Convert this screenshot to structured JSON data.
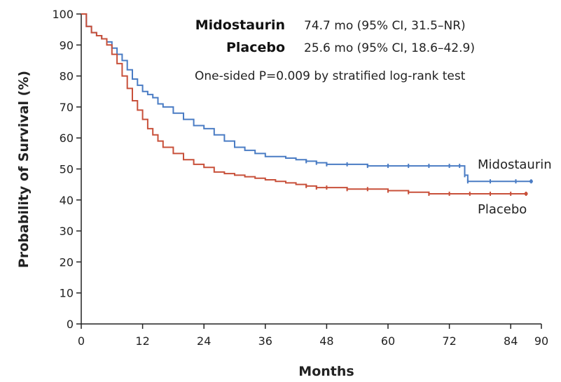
{
  "chart_data": {
    "type": "line",
    "title": "",
    "xlabel": "Months",
    "ylabel": "Probability of Survival (%)",
    "xlim": [
      0,
      90
    ],
    "ylim": [
      0,
      100
    ],
    "xticks": [
      0,
      12,
      24,
      36,
      48,
      60,
      72,
      84,
      90
    ],
    "yticks": [
      0,
      10,
      20,
      30,
      40,
      50,
      60,
      70,
      80,
      90,
      100
    ],
    "grid": false,
    "annotations": {
      "midostaurin_name": "Midostaurin",
      "midostaurin_median": "74.7 mo (95% CI, 31.5–NR)",
      "placebo_name": "Placebo",
      "placebo_median": "25.6 mo (95% CI, 18.6–42.9)",
      "pvalue": "One-sided P=0.009 by stratified log-rank test"
    },
    "series": [
      {
        "name": "Midostaurin",
        "color": "#4a7cc4",
        "x": [
          0,
          1,
          2,
          3,
          4,
          5,
          6,
          7,
          8,
          9,
          10,
          11,
          12,
          13,
          14,
          15,
          16,
          18,
          20,
          22,
          24,
          26,
          28,
          30,
          32,
          34,
          36,
          38,
          40,
          42,
          44,
          46,
          48,
          52,
          56,
          60,
          64,
          68,
          72,
          74,
          75,
          75.6,
          80,
          85,
          88
        ],
        "y": [
          100,
          96,
          94,
          93,
          92,
          91,
          89,
          87,
          85,
          82,
          79,
          77,
          75,
          74,
          73,
          71,
          70,
          68,
          66,
          64,
          63,
          61,
          59,
          57,
          56,
          55,
          54,
          54,
          53.5,
          53,
          52.5,
          52,
          51.5,
          51.5,
          51,
          51,
          51,
          51,
          51,
          51,
          48,
          46,
          46,
          46,
          46
        ]
      },
      {
        "name": "Placebo",
        "color": "#c8503a",
        "x": [
          0,
          1,
          2,
          3,
          4,
          5,
          6,
          7,
          8,
          9,
          10,
          11,
          12,
          13,
          14,
          15,
          16,
          18,
          20,
          22,
          24,
          26,
          28,
          30,
          32,
          34,
          36,
          38,
          40,
          42,
          44,
          46,
          48,
          52,
          56,
          60,
          64,
          68,
          72,
          76,
          80,
          84,
          87
        ],
        "y": [
          100,
          96,
          94,
          93,
          92,
          90,
          87,
          84,
          80,
          76,
          72,
          69,
          66,
          63,
          61,
          59,
          57,
          55,
          53,
          51.5,
          50.5,
          49,
          48.5,
          48,
          47.5,
          47,
          46.5,
          46,
          45.5,
          45,
          44.5,
          44,
          44,
          43.5,
          43.5,
          43,
          42.5,
          42,
          42,
          42,
          42,
          42,
          42
        ]
      }
    ]
  }
}
